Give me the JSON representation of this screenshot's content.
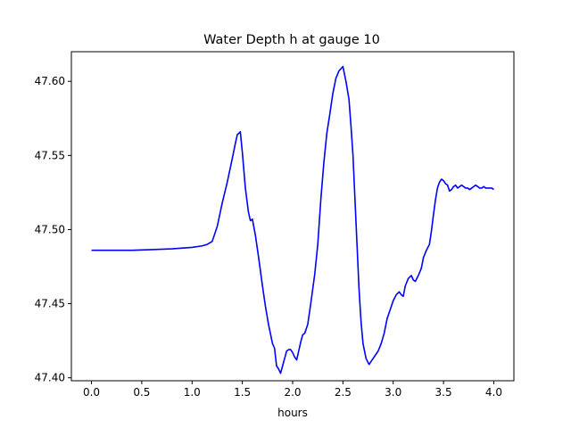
{
  "chart_data": {
    "type": "line",
    "title": "Water Depth h at gauge 10",
    "xlabel": "hours",
    "ylabel": "",
    "xlim": [
      -0.2,
      4.2
    ],
    "ylim": [
      47.398,
      47.62
    ],
    "xticks": [
      0.0,
      0.5,
      1.0,
      1.5,
      2.0,
      2.5,
      3.0,
      3.5,
      4.0
    ],
    "xtick_labels": [
      "0.0",
      "0.5",
      "1.0",
      "1.5",
      "2.0",
      "2.5",
      "3.0",
      "3.5",
      "4.0"
    ],
    "yticks": [
      47.4,
      47.45,
      47.5,
      47.55,
      47.6
    ],
    "ytick_labels": [
      "47.40",
      "47.45",
      "47.50",
      "47.55",
      "47.60"
    ],
    "grid": false,
    "series": [
      {
        "color": "#0000ff",
        "x": [
          0.0,
          0.2,
          0.4,
          0.6,
          0.8,
          1.0,
          1.1,
          1.15,
          1.2,
          1.25,
          1.3,
          1.35,
          1.4,
          1.43,
          1.45,
          1.48,
          1.5,
          1.53,
          1.56,
          1.58,
          1.6,
          1.63,
          1.66,
          1.7,
          1.73,
          1.76,
          1.8,
          1.82,
          1.84,
          1.86,
          1.88,
          1.9,
          1.92,
          1.94,
          1.96,
          1.98,
          2.0,
          2.02,
          2.04,
          2.06,
          2.08,
          2.1,
          2.12,
          2.15,
          2.18,
          2.2,
          2.22,
          2.25,
          2.28,
          2.31,
          2.34,
          2.37,
          2.4,
          2.43,
          2.46,
          2.5,
          2.53,
          2.56,
          2.58,
          2.6,
          2.62,
          2.64,
          2.66,
          2.68,
          2.7,
          2.73,
          2.76,
          2.79,
          2.82,
          2.85,
          2.88,
          2.91,
          2.94,
          2.97,
          3.0,
          3.03,
          3.06,
          3.08,
          3.1,
          3.12,
          3.15,
          3.18,
          3.2,
          3.22,
          3.25,
          3.28,
          3.3,
          3.33,
          3.36,
          3.38,
          3.4,
          3.42,
          3.44,
          3.46,
          3.48,
          3.5,
          3.52,
          3.54,
          3.56,
          3.58,
          3.6,
          3.62,
          3.64,
          3.66,
          3.68,
          3.7,
          3.72,
          3.74,
          3.76,
          3.78,
          3.8,
          3.82,
          3.84,
          3.86,
          3.88,
          3.9,
          3.92,
          3.94,
          3.96,
          3.98,
          4.0
        ],
        "y": [
          47.486,
          47.486,
          47.486,
          47.4865,
          47.487,
          47.488,
          47.489,
          47.49,
          47.492,
          47.502,
          47.518,
          47.532,
          47.548,
          47.558,
          47.564,
          47.566,
          47.552,
          47.528,
          47.512,
          47.506,
          47.507,
          47.496,
          47.482,
          47.462,
          47.448,
          47.436,
          47.423,
          47.42,
          47.408,
          47.406,
          47.403,
          47.408,
          47.413,
          47.418,
          47.419,
          47.419,
          47.417,
          47.414,
          47.412,
          47.418,
          47.424,
          47.429,
          47.43,
          47.436,
          47.45,
          47.46,
          47.47,
          47.49,
          47.52,
          47.545,
          47.565,
          47.578,
          47.592,
          47.602,
          47.607,
          47.61,
          47.6,
          47.588,
          47.57,
          47.55,
          47.52,
          47.49,
          47.46,
          47.438,
          47.423,
          47.413,
          47.409,
          47.412,
          47.415,
          47.418,
          47.423,
          47.43,
          47.44,
          47.446,
          47.452,
          47.456,
          47.458,
          47.456,
          47.455,
          47.462,
          47.467,
          47.469,
          47.466,
          47.465,
          47.469,
          47.474,
          47.481,
          47.486,
          47.49,
          47.499,
          47.51,
          47.52,
          47.528,
          47.532,
          47.534,
          47.533,
          47.531,
          47.53,
          47.526,
          47.527,
          47.529,
          47.53,
          47.528,
          47.529,
          47.53,
          47.529,
          47.528,
          47.528,
          47.527,
          47.528,
          47.529,
          47.53,
          47.529,
          47.528,
          47.528,
          47.529,
          47.528,
          47.528,
          47.528,
          47.528,
          47.527
        ]
      }
    ]
  }
}
